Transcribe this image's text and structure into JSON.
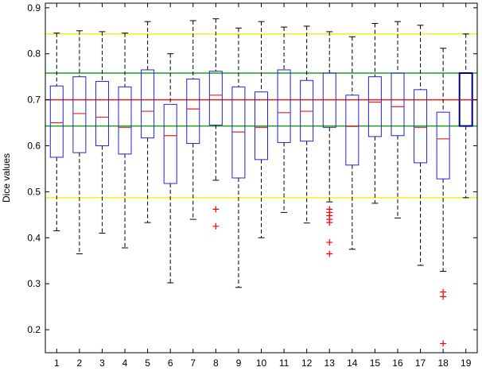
{
  "chart_data": {
    "type": "box",
    "title": "",
    "xlabel": "",
    "ylabel": "Dice values",
    "ylim": [
      0.15,
      0.91
    ],
    "yticks": [
      0.2,
      0.3,
      0.4,
      0.5,
      0.6,
      0.7,
      0.8,
      0.9
    ],
    "grid": false,
    "categories": [
      "1",
      "2",
      "3",
      "4",
      "5",
      "6",
      "7",
      "8",
      "9",
      "10",
      "11",
      "12",
      "13",
      "14",
      "15",
      "16",
      "17",
      "18",
      "19"
    ],
    "boxes": [
      {
        "category": "1",
        "whisker_low": 0.415,
        "q1": 0.575,
        "median": 0.65,
        "q3": 0.73,
        "whisker_high": 0.845,
        "outliers": []
      },
      {
        "category": "2",
        "whisker_low": 0.365,
        "q1": 0.585,
        "median": 0.67,
        "q3": 0.75,
        "whisker_high": 0.85,
        "outliers": []
      },
      {
        "category": "3",
        "whisker_low": 0.41,
        "q1": 0.6,
        "median": 0.662,
        "q3": 0.74,
        "whisker_high": 0.848,
        "outliers": []
      },
      {
        "category": "4",
        "whisker_low": 0.378,
        "q1": 0.582,
        "median": 0.64,
        "q3": 0.728,
        "whisker_high": 0.845,
        "outliers": []
      },
      {
        "category": "5",
        "whisker_low": 0.433,
        "q1": 0.617,
        "median": 0.675,
        "q3": 0.765,
        "whisker_high": 0.87,
        "outliers": []
      },
      {
        "category": "6",
        "whisker_low": 0.302,
        "q1": 0.518,
        "median": 0.622,
        "q3": 0.69,
        "whisker_high": 0.8,
        "outliers": []
      },
      {
        "category": "7",
        "whisker_low": 0.44,
        "q1": 0.605,
        "median": 0.68,
        "q3": 0.745,
        "whisker_high": 0.872,
        "outliers": []
      },
      {
        "category": "8",
        "whisker_low": 0.525,
        "q1": 0.645,
        "median": 0.71,
        "q3": 0.762,
        "whisker_high": 0.876,
        "outliers": [
          0.462,
          0.425
        ]
      },
      {
        "category": "9",
        "whisker_low": 0.292,
        "q1": 0.53,
        "median": 0.63,
        "q3": 0.728,
        "whisker_high": 0.856,
        "outliers": []
      },
      {
        "category": "10",
        "whisker_low": 0.4,
        "q1": 0.57,
        "median": 0.64,
        "q3": 0.717,
        "whisker_high": 0.87,
        "outliers": []
      },
      {
        "category": "11",
        "whisker_low": 0.455,
        "q1": 0.607,
        "median": 0.672,
        "q3": 0.765,
        "whisker_high": 0.858,
        "outliers": []
      },
      {
        "category": "12",
        "whisker_low": 0.432,
        "q1": 0.61,
        "median": 0.675,
        "q3": 0.742,
        "whisker_high": 0.86,
        "outliers": []
      },
      {
        "category": "13",
        "whisker_low": 0.478,
        "q1": 0.64,
        "median": 0.7,
        "q3": 0.758,
        "whisker_high": 0.848,
        "outliers": [
          0.462,
          0.455,
          0.448,
          0.44,
          0.433,
          0.39,
          0.365
        ]
      },
      {
        "category": "14",
        "whisker_low": 0.375,
        "q1": 0.558,
        "median": 0.642,
        "q3": 0.71,
        "whisker_high": 0.837,
        "outliers": []
      },
      {
        "category": "15",
        "whisker_low": 0.475,
        "q1": 0.62,
        "median": 0.695,
        "q3": 0.75,
        "whisker_high": 0.866,
        "outliers": []
      },
      {
        "category": "16",
        "whisker_low": 0.443,
        "q1": 0.622,
        "median": 0.685,
        "q3": 0.758,
        "whisker_high": 0.87,
        "outliers": []
      },
      {
        "category": "17",
        "whisker_low": 0.34,
        "q1": 0.563,
        "median": 0.64,
        "q3": 0.722,
        "whisker_high": 0.862,
        "outliers": []
      },
      {
        "category": "18",
        "whisker_low": 0.327,
        "q1": 0.528,
        "median": 0.615,
        "q3": 0.673,
        "whisker_high": 0.812,
        "outliers": [
          0.282,
          0.272,
          0.17
        ]
      },
      {
        "category": "19",
        "whisker_low": 0.487,
        "q1": 0.643,
        "median": 0.7,
        "q3": 0.758,
        "whisker_high": 0.843,
        "outliers": []
      }
    ],
    "reference_lines": [
      {
        "value": 0.843,
        "color": "#f2f21e"
      },
      {
        "value": 0.487,
        "color": "#f2f21e"
      },
      {
        "value": 0.758,
        "color": "#1ea01e"
      },
      {
        "value": 0.643,
        "color": "#1ea01e"
      },
      {
        "value": 0.7,
        "color": "#e01e1e"
      }
    ],
    "colors": {
      "box": "#2222dd",
      "highlight_box": "#000080",
      "median": "#ee1c1c",
      "whisker": "#000000",
      "outlier": "#ff0000"
    },
    "highlighted_category": "19"
  }
}
